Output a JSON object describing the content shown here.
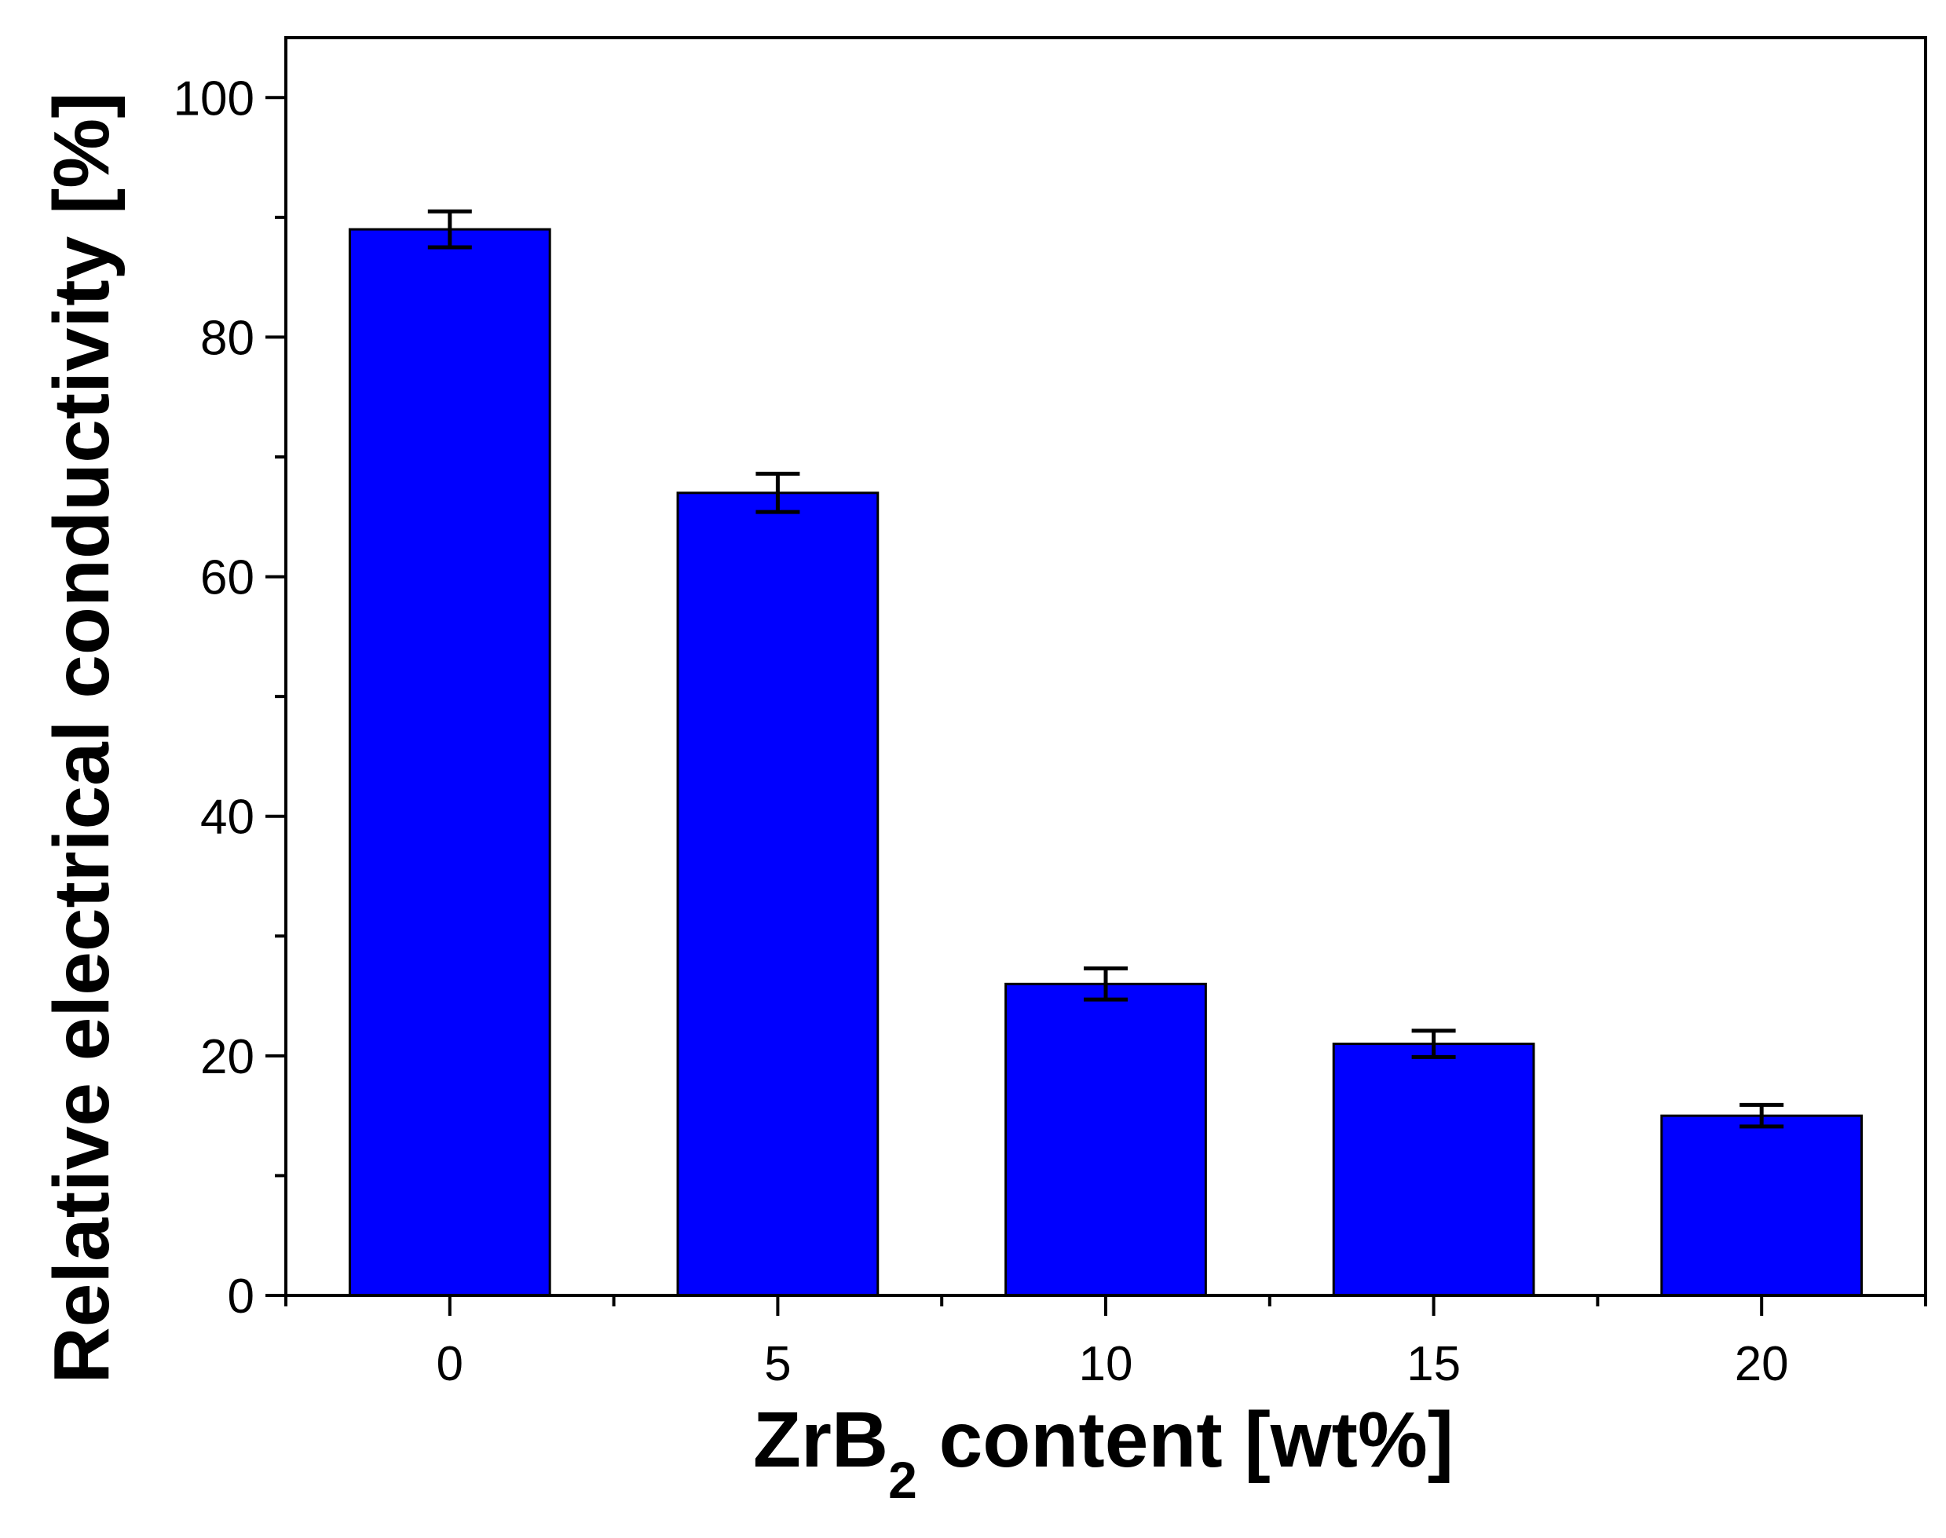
{
  "chart_data": {
    "type": "bar",
    "title": "",
    "xlabel": {
      "main": "ZrB",
      "subscript": "2",
      "rest": " content [wt%]"
    },
    "ylabel": "Relative electrical conductivity [%]",
    "categories": [
      "0",
      "5",
      "10",
      "15",
      "20"
    ],
    "values": [
      89,
      67,
      26,
      21,
      15
    ],
    "errors": [
      1.5,
      1.6,
      1.3,
      1.1,
      0.9
    ],
    "ylim": [
      0,
      105
    ],
    "xlim": [
      -2.5,
      22.5
    ],
    "yticks": [
      0,
      20,
      40,
      60,
      80,
      100
    ],
    "yminor_step": 10,
    "xticks": [
      0,
      5,
      10,
      15,
      20
    ],
    "xminor_step": 2.5,
    "bar_color": "#0000ff",
    "edge_color": "#000000",
    "grid": false,
    "legend": "none"
  }
}
